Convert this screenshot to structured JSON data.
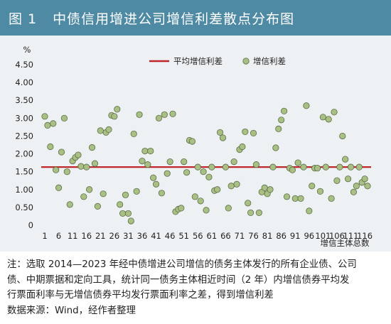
{
  "figure": {
    "number": "图 1",
    "title": "中债信用增进公司增信利差散点分布图"
  },
  "chart_data": {
    "type": "scatter",
    "ylabel": "%",
    "xlabel": "增信主体总数",
    "ylim": [
      0,
      4.5
    ],
    "y_ticks": [
      "0",
      "0.50",
      "1.00",
      "1.50",
      "2.00",
      "2.50",
      "3.00",
      "3.50",
      "4.00",
      "4.50"
    ],
    "x_ticks": [
      "1",
      "6",
      "11",
      "16",
      "21",
      "26",
      "31",
      "36",
      "41",
      "46",
      "51",
      "56",
      "61",
      "66",
      "71",
      "76",
      "81",
      "86",
      "91",
      "96",
      "101",
      "106",
      "111",
      "116"
    ],
    "legend_position": "top",
    "grid": false,
    "average_line": {
      "name": "平均增信利差",
      "value": 1.63,
      "color": "#c0272d"
    },
    "series": [
      {
        "name": "增信利差",
        "color": "#a9c084",
        "x": [
          1,
          2,
          3,
          4,
          5,
          6,
          7,
          8,
          9,
          10,
          11,
          12,
          13,
          14,
          15,
          16,
          17,
          18,
          19,
          20,
          21,
          22,
          23,
          24,
          25,
          26,
          27,
          28,
          29,
          30,
          31,
          32,
          33,
          34,
          35,
          36,
          37,
          38,
          39,
          40,
          41,
          42,
          43,
          44,
          45,
          46,
          47,
          48,
          49,
          50,
          51,
          52,
          53,
          54,
          55,
          56,
          57,
          58,
          59,
          60,
          61,
          62,
          63,
          64,
          65,
          66,
          67,
          68,
          69,
          70,
          71,
          72,
          73,
          74,
          75,
          76,
          77,
          78,
          79,
          80,
          81,
          82,
          83,
          84,
          85,
          86,
          87,
          88,
          89,
          90,
          91,
          92,
          93,
          94,
          95,
          96,
          97,
          98,
          99,
          100,
          101,
          102,
          103,
          104,
          105,
          106,
          107,
          108,
          109,
          110,
          111,
          112,
          113,
          114,
          115,
          116,
          117
        ],
        "values": [
          3.05,
          2.8,
          2.2,
          2.85,
          1.55,
          1.05,
          2.05,
          3.0,
          1.5,
          0.58,
          1.8,
          1.9,
          1.97,
          1.65,
          0.8,
          1.63,
          1.0,
          2.18,
          1.73,
          0.53,
          2.65,
          0.88,
          2.6,
          2.68,
          3.08,
          3.05,
          3.25,
          0.58,
          0.33,
          0.85,
          0.33,
          0.12,
          2.56,
          0.95,
          3.1,
          1.8,
          2.08,
          1.7,
          2.08,
          1.33,
          1.15,
          3.0,
          0.9,
          3.1,
          1.45,
          1.78,
          3.12,
          0.38,
          0.45,
          0.48,
          1.78,
          1.48,
          2.38,
          2.35,
          0.8,
          1.63,
          0.68,
          1.5,
          0.42,
          1.35,
          1.63,
          0.97,
          1.0,
          2.6,
          2.45,
          1.63,
          0.48,
          1.1,
          1.78,
          1.15,
          2.12,
          2.2,
          2.62,
          0.62,
          0.35,
          2.58,
          1.7,
          0.35,
          0.93,
          1.05,
          0.88,
          1.0,
          1.63,
          2.17,
          2.7,
          2.95,
          3.2,
          0.8,
          1.6,
          1.55,
          0.75,
          1.75,
          0.75,
          1.63,
          3.35,
          0.4,
          1.1,
          1.6,
          1.6,
          0.95,
          3.03,
          1.63,
          2.97,
          0.75,
          3.17,
          1.25,
          1.63,
          2.5,
          1.85,
          1.3,
          1.63,
          0.93,
          1.1,
          1.63,
          1.2,
          1.3,
          1.1
        ]
      }
    ]
  },
  "notes": {
    "line1": "注：选取 2014—2023 年经中债增进公司增信的债务主体发行的所有企业债、公司",
    "line2": "债、中期票据和定向工具，统计同一债务主体相近时间（2 年）内增信债券平均发",
    "line3": "行票面利率与无增信债券平均发行票面利率之差，得到增信利差",
    "line4": "数据来源：Wind，经作者整理"
  }
}
